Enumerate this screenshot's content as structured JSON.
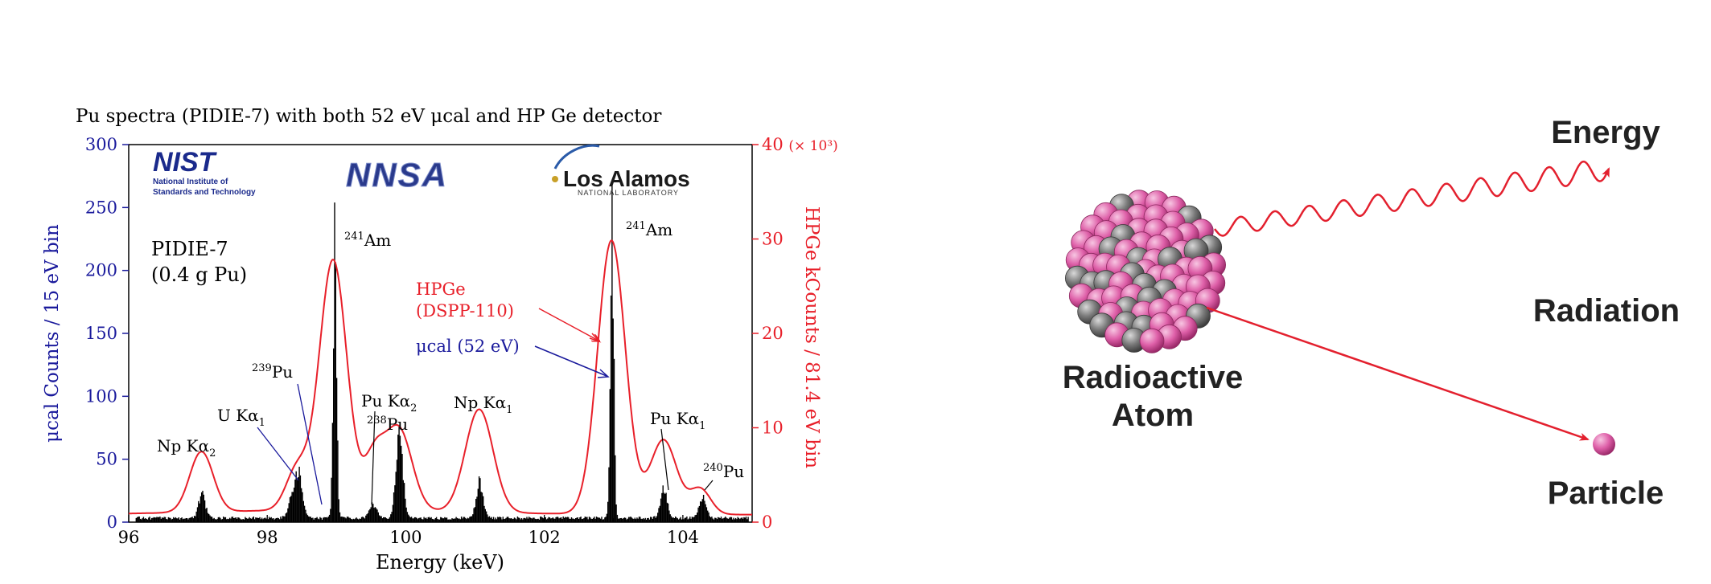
{
  "chart_data": {
    "type": "line",
    "title": "Pu spectra (PIDIE-7) with both 52 eV μcal and HP Ge detector",
    "xlabel": "Energy (keV)",
    "xlim": [
      96,
      105
    ],
    "x_ticks": [
      "96",
      "98",
      "100",
      "102",
      "104"
    ],
    "left_axis": {
      "label": "μcal Counts / 15 eV bin",
      "ylim": [
        0,
        300
      ],
      "ticks": [
        "0",
        "50",
        "100",
        "150",
        "200",
        "250",
        "300"
      ]
    },
    "right_axis": {
      "label": "HPGe kCounts / 81.4 eV bin",
      "ylim": [
        0,
        40
      ],
      "ticks": [
        "0",
        "10",
        "20",
        "30"
      ],
      "top_tick": "40",
      "top_tick_suffix": "(× 10³)"
    },
    "series": [
      {
        "name": "HPGe (DSPP-110)",
        "axis": "right",
        "style": "line",
        "color": "#e8202a",
        "peaks": [
          {
            "x": 97.05,
            "height": 6.4,
            "sigma": 0.17
          },
          {
            "x": 98.43,
            "height": 4.3,
            "sigma": 0.16
          },
          {
            "x": 98.95,
            "height": 26.5,
            "sigma": 0.2
          },
          {
            "x": 99.55,
            "height": 5.5,
            "sigma": 0.15
          },
          {
            "x": 99.9,
            "height": 8.6,
            "sigma": 0.19
          },
          {
            "x": 101.06,
            "height": 10.9,
            "sigma": 0.2
          },
          {
            "x": 102.97,
            "height": 29.0,
            "sigma": 0.2
          },
          {
            "x": 103.72,
            "height": 7.9,
            "sigma": 0.19
          },
          {
            "x": 104.25,
            "height": 2.7,
            "sigma": 0.15
          }
        ],
        "baseline": 1.0
      },
      {
        "name": "μcal (52 eV)",
        "axis": "left",
        "style": "bars",
        "color": "#000000",
        "peaks": [
          {
            "x": 97.05,
            "height": 20
          },
          {
            "x": 98.35,
            "height": 18
          },
          {
            "x": 98.45,
            "height": 37
          },
          {
            "x": 98.97,
            "height": 233
          },
          {
            "x": 99.52,
            "height": 12
          },
          {
            "x": 99.9,
            "height": 69
          },
          {
            "x": 101.06,
            "height": 31
          },
          {
            "x": 102.97,
            "height": 248
          },
          {
            "x": 103.72,
            "height": 25
          },
          {
            "x": 104.28,
            "height": 17
          }
        ]
      }
    ],
    "annotations": [
      {
        "id": "np-ka2",
        "text": "Np Kα",
        "sub": "2"
      },
      {
        "id": "u-ka1",
        "text": "U Kα",
        "sub": "1"
      },
      {
        "id": "pu239",
        "sup": "239",
        "text": "Pu"
      },
      {
        "id": "am241-left",
        "sup": "241",
        "text": "Am"
      },
      {
        "id": "pu-ka2",
        "text": "Pu Kα",
        "sub": "2"
      },
      {
        "id": "pu238",
        "sup": "238",
        "text": "Pu"
      },
      {
        "id": "np-ka1",
        "text": "Np Kα",
        "sub": "1"
      },
      {
        "id": "am241-right",
        "sup": "241",
        "text": "Am"
      },
      {
        "id": "pu-ka1",
        "text": "Pu Kα",
        "sub": "1"
      },
      {
        "id": "pu240",
        "sup": "240",
        "text": "Pu"
      }
    ],
    "sample_label": [
      "PIDIE-7",
      "(0.4 g Pu)"
    ],
    "series_labels": {
      "hpge": [
        "HPGe",
        "(DSPP-110)"
      ],
      "mucal": "μcal (52 eV)"
    },
    "logos": {
      "nist": {
        "mark": "NIST",
        "lines": [
          "National Institute of",
          "Standards and Technology"
        ]
      },
      "nnsa": {
        "mark": "NNSA"
      },
      "lanl": {
        "mark": "Los Alamos",
        "sub": "NATIONAL LABORATORY"
      }
    },
    "colors": {
      "left_axis": "#1a1a9c",
      "right_axis": "#e8202a",
      "bars": "#000000"
    }
  },
  "diagram": {
    "atom_label": [
      "Radioactive",
      "Atom"
    ],
    "center_label": "Radiation",
    "energy_label": "Energy",
    "particle_label": "Particle",
    "colors": {
      "arrow": "#e3202e",
      "nucleon_pink": "#d9559f",
      "nucleon_gray": "#6e6e6e"
    }
  }
}
